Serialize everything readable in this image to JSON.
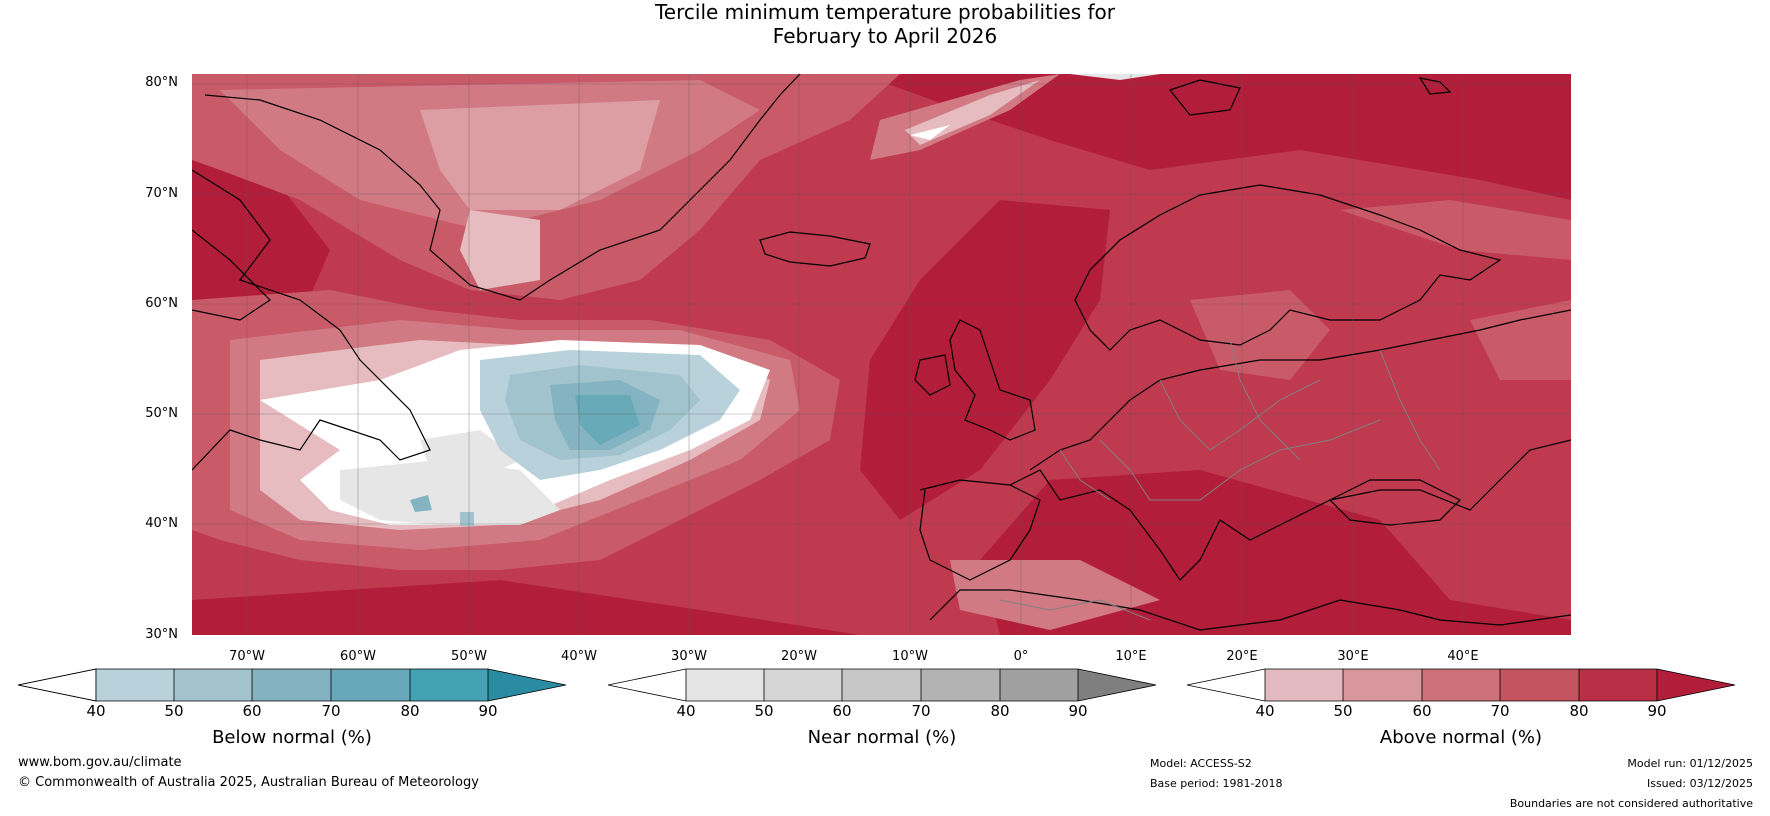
{
  "title": {
    "line1": "Tercile minimum temperature probabilities for",
    "line2": "February to April 2026"
  },
  "map": {
    "lat_labels": [
      "80°N",
      "70°N",
      "60°N",
      "50°N",
      "40°N",
      "30°N"
    ],
    "lon_labels": [
      "70°W",
      "60°W",
      "50°W",
      "40°W",
      "30°W",
      "20°W",
      "10°W",
      "0°",
      "10°E",
      "20°E",
      "30°E",
      "40°E"
    ],
    "colors": {
      "above_90": "#b21e3a",
      "above_80": "#bf394f",
      "above_70": "#c95a68",
      "above_60": "#d17a84",
      "above_50": "#dc9da3",
      "above_40": "#e6bcc1",
      "near_40": "#e6e6e6",
      "below_40": "#b9d1da",
      "below_50": "#a0c3cd",
      "below_60": "#84b4c2",
      "below_70": "#69aab9",
      "land_outline": "#000000",
      "border": "#808080"
    }
  },
  "colorbars": {
    "below": {
      "label": "Below normal (%)",
      "ticks": [
        "40",
        "50",
        "60",
        "70",
        "80",
        "90"
      ],
      "colors": [
        "#b9d1da",
        "#a3c4cd",
        "#85b2c1",
        "#66a8b9",
        "#45a2b4"
      ],
      "left_color": "#ffffff",
      "right_color": "#2a8ca3"
    },
    "near": {
      "label": "Near normal (%)",
      "ticks": [
        "40",
        "50",
        "60",
        "70",
        "80",
        "90"
      ],
      "colors": [
        "#e5e5e5",
        "#d6d6d6",
        "#c7c7c7",
        "#b3b3b3",
        "#a0a0a0"
      ],
      "left_color": "#ffffff",
      "right_color": "#7f7f7f"
    },
    "above": {
      "label": "Above normal (%)",
      "ticks": [
        "40",
        "50",
        "60",
        "70",
        "80",
        "90"
      ],
      "colors": [
        "#e2b9be",
        "#d8979d",
        "#cd7279",
        "#c55460",
        "#b92f45"
      ],
      "left_color": "#ffffff",
      "right_color": "#b21e3a"
    }
  },
  "footer": {
    "website": "www.bom.gov.au/climate",
    "copyright": "© Commonwealth of Australia 2025, Australian Bureau of Meteorology",
    "model": "Model: ACCESS-S2",
    "base_period": "Base period: 1981-2018",
    "model_run": "Model run: 01/12/2025",
    "issued": "Issued: 03/12/2025",
    "disclaimer": "Boundaries are not considered authoritative"
  }
}
